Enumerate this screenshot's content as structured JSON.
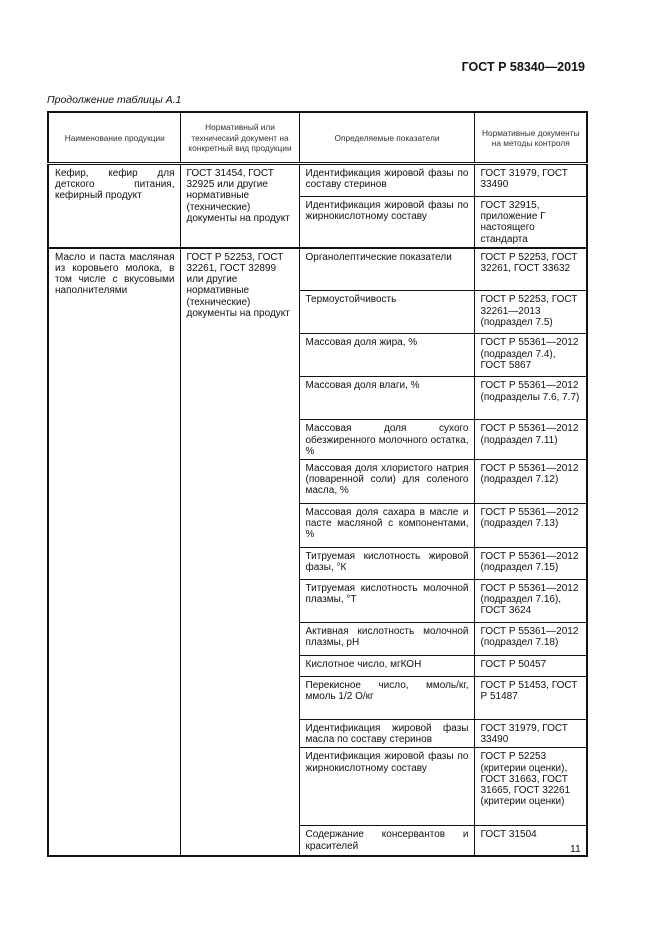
{
  "header": {
    "doc_code": "ГОСТ Р 58340—2019"
  },
  "caption": "Продолжение таблицы А.1",
  "table": {
    "columns": [
      "Наименование продукции",
      "Нормативный или технический документ на конкретный вид продукции",
      "Определяемые показатели",
      "Нормативные документы на методы контроля"
    ],
    "groups": [
      {
        "product": "Кефир, кефир для детского питания, кефирный продукт",
        "document": "ГОСТ 31454, ГОСТ 32925 или другие нормативные (технические) документы на продукт",
        "rows": [
          {
            "indicator": "Идентификация жировой фазы по составу стеринов",
            "methods": "ГОСТ 31979, ГОСТ 33490"
          },
          {
            "indicator": "Идентификация жировой фазы по жирнокислотному составу",
            "methods": "ГОСТ 32915, приложение Г настоящего стандарта"
          }
        ]
      },
      {
        "product": "Масло и паста масляная из коровьего молока, в том числе с вкусовыми наполнителями",
        "document": "ГОСТ Р 52253, ГОСТ 32261, ГОСТ 32899 или другие нормативные (технические) документы на продукт",
        "rows": [
          {
            "indicator": "Органолептические показатели",
            "methods": "ГОСТ Р 52253, ГОСТ 32261, ГОСТ 33632"
          },
          {
            "indicator": "Термоустойчивость",
            "methods": "ГОСТ Р 52253, ГОСТ 32261—2013 (подраздел 7.5)"
          },
          {
            "indicator": "Массовая доля жира, %",
            "methods": "ГОСТ Р 55361—2012 (подраздел 7.4), ГОСТ 5867"
          },
          {
            "indicator": "Массовая доля влаги, %",
            "methods": "ГОСТ Р 55361—2012 (подразделы 7.6, 7.7)"
          },
          {
            "indicator": "Массовая доля сухого обезжиренного молочного остатка, %",
            "methods": "ГОСТ Р 55361—2012 (подраздел 7.11)"
          },
          {
            "indicator": "Массовая доля хлористого натрия (поваренной соли) для соленого масла, %",
            "methods": "ГОСТ Р 55361—2012 (подраздел 7.12)"
          },
          {
            "indicator": "Массовая доля сахара в масле и пасте масляной с компонентами, %",
            "methods": "ГОСТ Р 55361—2012 (подраздел 7.13)"
          },
          {
            "indicator": "Титруемая кислотность жировой фазы, °К",
            "methods": "ГОСТ Р 55361—2012 (подраздел 7.15)"
          },
          {
            "indicator": "Титруемая кислотность молочной плазмы, °Т",
            "methods": "ГОСТ Р 55361—2012 (подраздел 7.16), ГОСТ 3624"
          },
          {
            "indicator": "Активная кислотность молочной плазмы, pH",
            "methods": "ГОСТ Р 55361—2012 (подраздел 7.18)"
          },
          {
            "indicator": "Кислотное число, мгКОН",
            "methods": "ГОСТ Р 50457"
          },
          {
            "indicator": "Перекисное число, ммоль/кг, ммоль 1/2 О/кг",
            "methods": "ГОСТ Р 51453, ГОСТ Р 51487"
          },
          {
            "indicator": "Идентификация жировой фазы масла по составу стеринов",
            "methods": "ГОСТ 31979, ГОСТ 33490"
          },
          {
            "indicator": "Идентификация жировой фазы по жирнокислотному составу",
            "methods": "ГОСТ Р 52253 (критерии оценки), ГОСТ 31663, ГОСТ 31665, ГОСТ 32261 (критерии оценки)"
          },
          {
            "indicator": "Содержание консервантов и красителей",
            "methods": "ГОСТ 31504"
          }
        ]
      }
    ]
  },
  "page_number": "11"
}
